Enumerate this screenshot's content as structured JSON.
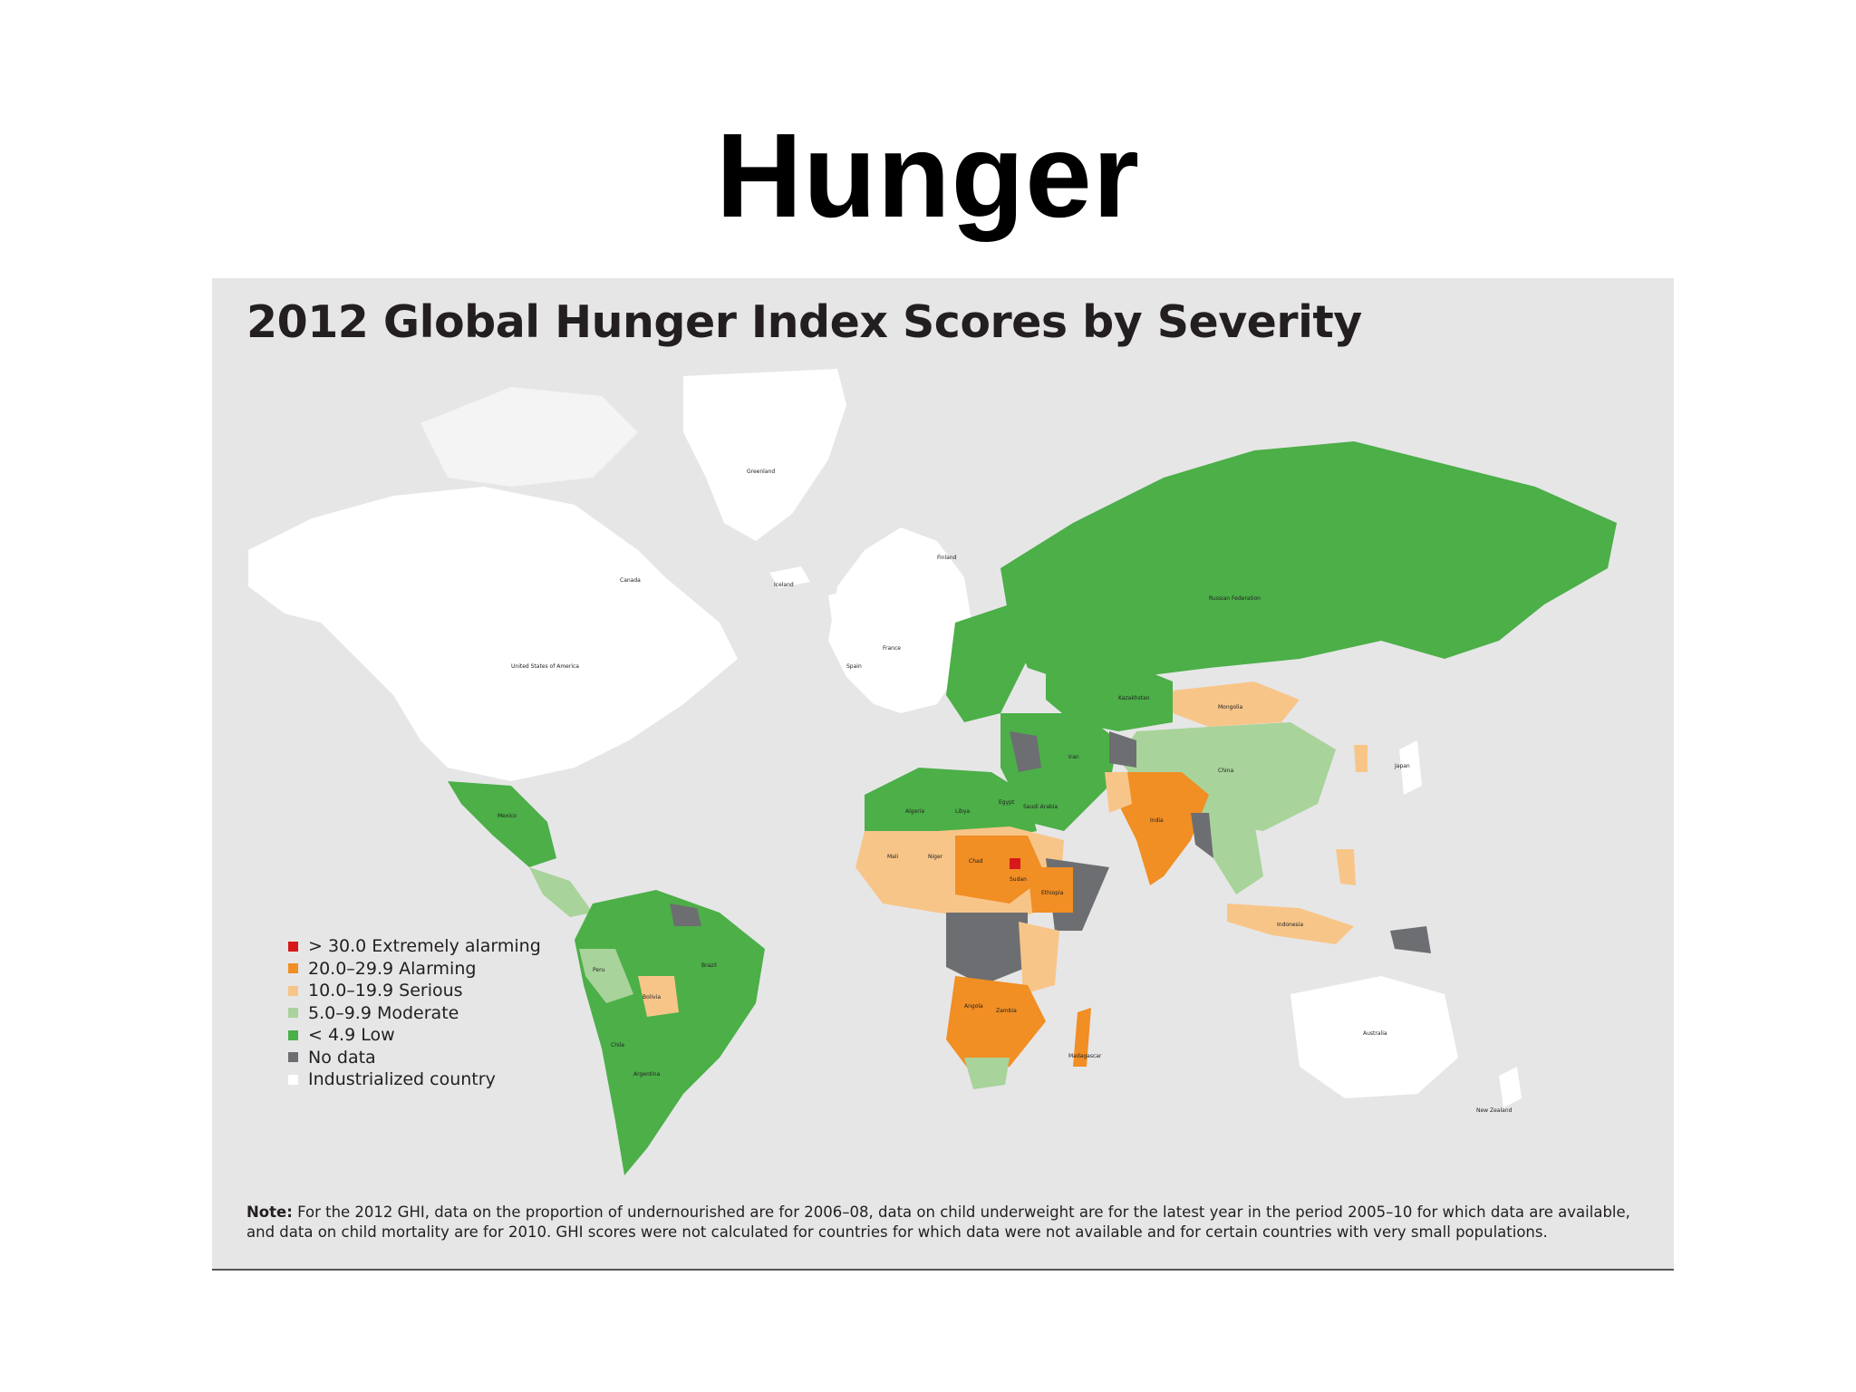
{
  "slide": {
    "title": "Hunger"
  },
  "map": {
    "title": "2012 Global Hunger Index Scores by Severity",
    "legend": [
      {
        "label": "> 30.0 Extremely alarming",
        "color": "#d7191c"
      },
      {
        "label": "20.0–29.9 Alarming",
        "color": "#f18e24"
      },
      {
        "label": "10.0–19.9 Serious",
        "color": "#f8c589"
      },
      {
        "label": "5.0–9.9 Moderate",
        "color": "#a8d39a"
      },
      {
        "label": "< 4.9 Low",
        "color": "#4caf48"
      },
      {
        "label": "No data",
        "color": "#6d6e71"
      },
      {
        "label": "Industrialized country",
        "color": "#ffffff"
      }
    ],
    "note_label": "Note:",
    "note_text": " For the 2012 GHI, data on the proportion of undernourished are for 2006–08, data on child underweight are for the latest year in the period 2005–10 for which data are available, and data on child mortality are for 2010. GHI scores were not calculated for countries for which data were not available and for certain countries with very small populations.",
    "country_labels": [
      {
        "name": "Greenland"
      },
      {
        "name": "Canada"
      },
      {
        "name": "United States of America"
      },
      {
        "name": "Mexico"
      },
      {
        "name": "Brazil"
      },
      {
        "name": "Argentina"
      },
      {
        "name": "Bolivia"
      },
      {
        "name": "Peru"
      },
      {
        "name": "Chile"
      },
      {
        "name": "Russian Federation"
      },
      {
        "name": "Kazakhstan"
      },
      {
        "name": "Mongolia"
      },
      {
        "name": "China"
      },
      {
        "name": "India"
      },
      {
        "name": "Iran"
      },
      {
        "name": "Saudi Arabia"
      },
      {
        "name": "Algeria"
      },
      {
        "name": "Libya"
      },
      {
        "name": "Egypt"
      },
      {
        "name": "Mali"
      },
      {
        "name": "Niger"
      },
      {
        "name": "Chad"
      },
      {
        "name": "Sudan"
      },
      {
        "name": "Ethiopia"
      },
      {
        "name": "Angola"
      },
      {
        "name": "Zambia"
      },
      {
        "name": "Madagascar"
      },
      {
        "name": "Australia"
      },
      {
        "name": "Indonesia"
      },
      {
        "name": "Japan"
      },
      {
        "name": "Spain"
      },
      {
        "name": "France"
      },
      {
        "name": "Iceland"
      },
      {
        "name": "Finland"
      },
      {
        "name": "New Zealand"
      }
    ]
  }
}
